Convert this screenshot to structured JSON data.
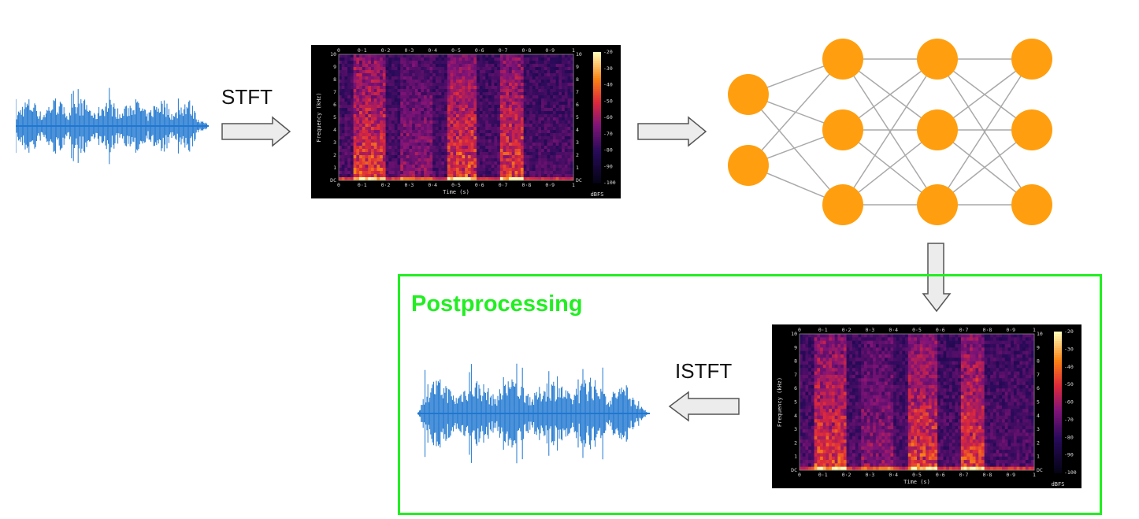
{
  "labels": {
    "stft": "STFT",
    "istft": "ISTFT",
    "postprocessing": "Postprocessing"
  },
  "spectrogram": {
    "x_ticks": [
      "0",
      "0·1",
      "0·2",
      "0·3",
      "0·4",
      "0·5",
      "0·6",
      "0·7",
      "0·8",
      "0·9",
      "1"
    ],
    "y_ticks": [
      "DC",
      "1",
      "2",
      "3",
      "4",
      "5",
      "6",
      "7",
      "8",
      "9",
      "10"
    ],
    "cbar_ticks": [
      "-20",
      "-30",
      "-40",
      "-50",
      "-60",
      "-70",
      "-80",
      "-90",
      "-100"
    ],
    "xlabel": "Time (s)",
    "ylabel": "Frequency (kHz)",
    "cbar_unit": "dBFS"
  },
  "network": {
    "layers": [
      2,
      3,
      3,
      3
    ]
  },
  "colors": {
    "waveform": "#1f77d0",
    "node": "#ff9f0f",
    "edge": "#a9a9a9",
    "highlight_box": "#22ee22",
    "arrow_fill": "#ececec",
    "arrow_stroke": "#555555"
  }
}
